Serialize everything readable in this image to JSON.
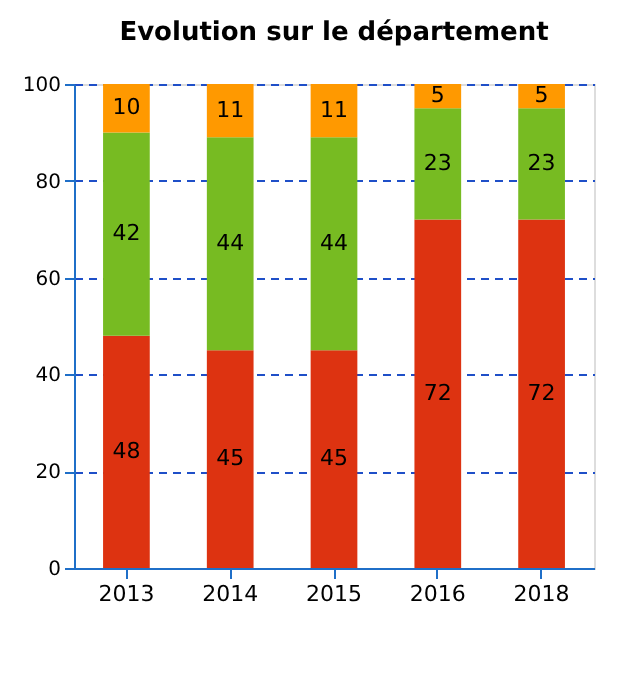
{
  "chart_data": {
    "type": "bar",
    "title": "Evolution sur le département",
    "categories": [
      "2013",
      "2014",
      "2015",
      "2016",
      "2018"
    ],
    "series": [
      {
        "color": "#dd3311",
        "values": [
          48,
          45,
          45,
          72,
          72
        ]
      },
      {
        "color": "#77bb22",
        "values": [
          42,
          44,
          44,
          23,
          23
        ]
      },
      {
        "color": "#ff9900",
        "values": [
          10,
          11,
          11,
          5,
          5
        ]
      }
    ],
    "stacked": true,
    "ylim": [
      0,
      100
    ],
    "yticks": [
      0,
      20,
      40,
      60,
      80,
      100
    ],
    "grid": "y",
    "data_labels": true
  }
}
